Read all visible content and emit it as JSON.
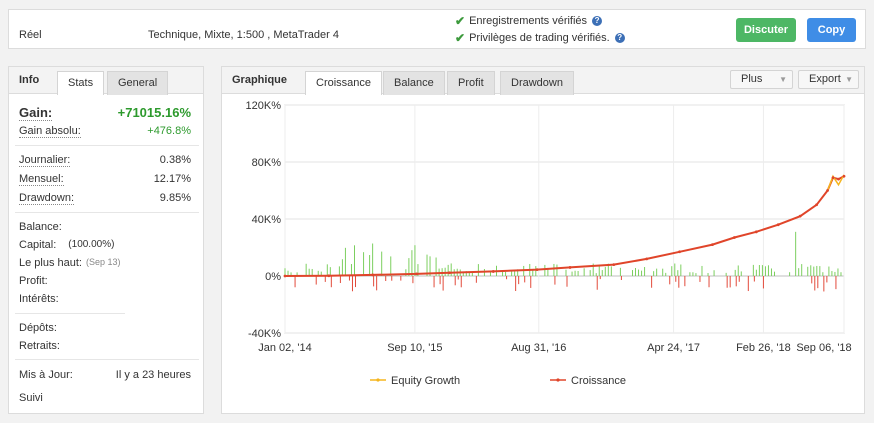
{
  "header": {
    "account_type": "Réel",
    "account_desc": "Technique, Mixte, 1:500 , MetaTrader 4",
    "verifications": [
      "Enregistrements vérifiés",
      "Privilèges de trading vérifiés."
    ],
    "discuss_label": "Discuter",
    "copy_label": "Copy"
  },
  "info": {
    "title": "Info",
    "tabs": [
      "Stats",
      "General"
    ],
    "gain_label": "Gain:",
    "gain_value": "+71015.16%",
    "abs_gain_label": "Gain absolu:",
    "abs_gain_value": "+476.8%",
    "daily_label": "Journalier:",
    "daily_value": "0.38%",
    "monthly_label": "Mensuel:",
    "monthly_value": "12.17%",
    "drawdown_label": "Drawdown:",
    "drawdown_value": "9.85%",
    "balance_label": "Balance:",
    "capital_label": "Capital:",
    "capital_value": "(100.00%)",
    "peak_label": "Le plus haut:",
    "peak_date": "(Sep 13)",
    "profit_label": "Profit:",
    "interest_label": "Intérêts:",
    "deposits_label": "Dépôts:",
    "withdrawals_label": "Retraits:",
    "updated_label": "Mis à Jour:",
    "updated_value": "Il y a 23 heures",
    "follow_label": "Suivi"
  },
  "chart_panel": {
    "title": "Graphique",
    "tabs": [
      "Croissance",
      "Balance",
      "Profit",
      "Drawdown"
    ],
    "active_tab": "Croissance",
    "more_label": "Plus",
    "export_label": "Export"
  },
  "chart_data": {
    "type": "line",
    "x_labels": [
      "Jan 02, '14",
      "Sep 10, '15",
      "Aug 31, '16",
      "Apr 24, '17",
      "Feb 26, '18",
      "Sep 06, '18"
    ],
    "y_labels": [
      "120K%",
      "80K%",
      "40K%",
      "0%",
      "-40K%"
    ],
    "ylim": [
      -40000,
      120000
    ],
    "series": [
      {
        "name": "Equity Growth",
        "color": "#f5b51e"
      },
      {
        "name": "Croissance",
        "color": "#e0452a"
      }
    ],
    "growth_points": [
      [
        0,
        0
      ],
      [
        8,
        150
      ],
      [
        16,
        800
      ],
      [
        24,
        1500
      ],
      [
        30,
        2300
      ],
      [
        38,
        3200
      ],
      [
        46,
        4500
      ],
      [
        52,
        6000
      ],
      [
        60,
        8000
      ],
      [
        66,
        12000
      ],
      [
        72,
        17000
      ],
      [
        78,
        22000
      ],
      [
        82,
        27000
      ],
      [
        86,
        31000
      ],
      [
        90,
        36000
      ],
      [
        94,
        42000
      ],
      [
        97,
        50000
      ],
      [
        99,
        60000
      ],
      [
        100,
        69000
      ],
      [
        101,
        68000
      ],
      [
        102,
        70000
      ]
    ],
    "equity_points": [
      [
        99,
        60000
      ],
      [
        100,
        70000
      ],
      [
        101,
        64000
      ],
      [
        102,
        71000
      ]
    ],
    "bar_colors": {
      "positive": "#7ccf5f",
      "negative": "#e24a3a"
    },
    "grid": true
  }
}
